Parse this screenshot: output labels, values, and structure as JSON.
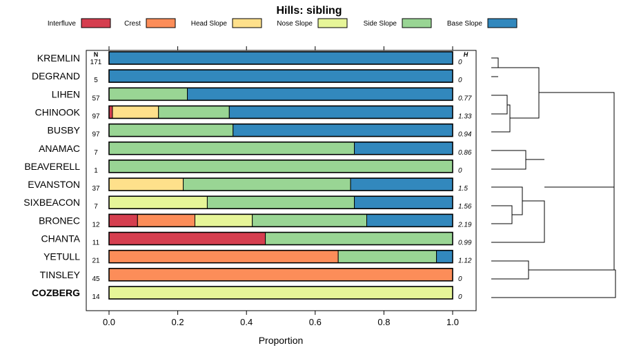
{
  "chart_data": {
    "type": "bar",
    "stacked": true,
    "orientation": "horizontal",
    "title": "Hills: sibling",
    "xlabel": "Proportion",
    "xlim": [
      0,
      1
    ],
    "xticks": [
      "0.0",
      "0.2",
      "0.4",
      "0.6",
      "0.8",
      "1.0"
    ],
    "xtick_values": [
      0,
      0.2,
      0.4,
      0.6,
      0.8,
      1.0
    ],
    "n_header": "N",
    "h_header": "H",
    "legend": [
      {
        "name": "Interfluve",
        "color": "#d53e4f"
      },
      {
        "name": "Crest",
        "color": "#fc8d59"
      },
      {
        "name": "Head Slope",
        "color": "#fee08b"
      },
      {
        "name": "Nose Slope",
        "color": "#e6f598"
      },
      {
        "name": "Side Slope",
        "color": "#99d594"
      },
      {
        "name": "Base Slope",
        "color": "#3288bd"
      }
    ],
    "rows": [
      {
        "name": "KREMLIN",
        "n": "171",
        "h": "0",
        "values": [
          0,
          0,
          0,
          0,
          0,
          1.0
        ]
      },
      {
        "name": "DEGRAND",
        "n": "5",
        "h": "0",
        "values": [
          0,
          0,
          0,
          0,
          0,
          1.0
        ]
      },
      {
        "name": "LIHEN",
        "n": "57",
        "h": "0.77",
        "values": [
          0,
          0,
          0,
          0,
          0.228,
          0.772
        ]
      },
      {
        "name": "CHINOOK",
        "n": "97",
        "h": "1.33",
        "values": [
          0.01,
          0,
          0.134,
          0,
          0.206,
          0.65
        ]
      },
      {
        "name": "BUSBY",
        "n": "97",
        "h": "0.94",
        "values": [
          0,
          0,
          0,
          0,
          0.361,
          0.639
        ]
      },
      {
        "name": "ANAMAC",
        "n": "7",
        "h": "0.86",
        "values": [
          0,
          0,
          0,
          0,
          0.714,
          0.286
        ]
      },
      {
        "name": "BEAVERELL",
        "n": "1",
        "h": "0",
        "values": [
          0,
          0,
          0,
          0,
          1.0,
          0
        ]
      },
      {
        "name": "EVANSTON",
        "n": "37",
        "h": "1.5",
        "values": [
          0,
          0,
          0.216,
          0,
          0.487,
          0.297
        ]
      },
      {
        "name": "SIXBEACON",
        "n": "7",
        "h": "1.56",
        "values": [
          0,
          0,
          0,
          0.286,
          0.428,
          0.286
        ]
      },
      {
        "name": "BRONEC",
        "n": "12",
        "h": "2.19",
        "values": [
          0.083,
          0.167,
          0,
          0.167,
          0.333,
          0.25
        ]
      },
      {
        "name": "CHANTA",
        "n": "11",
        "h": "0.99",
        "values": [
          0.455,
          0,
          0,
          0,
          0.545,
          0
        ]
      },
      {
        "name": "YETULL",
        "n": "21",
        "h": "1.12",
        "values": [
          0,
          0.667,
          0,
          0,
          0.286,
          0.047
        ]
      },
      {
        "name": "TINSLEY",
        "n": "45",
        "h": "0",
        "values": [
          0,
          1.0,
          0,
          0,
          0,
          0
        ]
      },
      {
        "name": "COZBERG",
        "n": "14",
        "h": "0",
        "values": [
          0,
          0,
          0,
          1.0,
          0,
          0
        ],
        "highlight": true
      }
    ]
  }
}
